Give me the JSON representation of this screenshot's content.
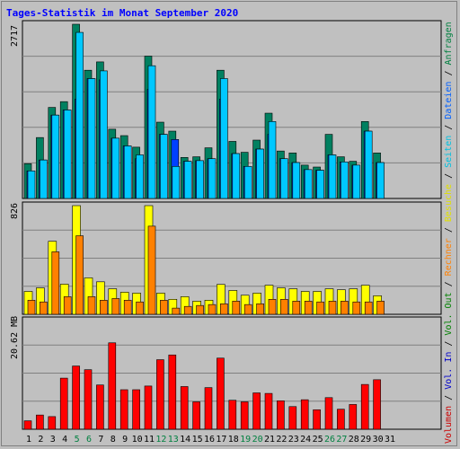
{
  "title": "Tages-Statistik im Monat September 2020",
  "right_label": {
    "parts": [
      {
        "text": "Volumen",
        "color": "#cc0000"
      },
      {
        "text": " / ",
        "color": "#000000"
      },
      {
        "text": "Vol. In",
        "color": "#0000cc"
      },
      {
        "text": " / ",
        "color": "#000000"
      },
      {
        "text": "Vol. Out",
        "color": "#008000"
      },
      {
        "text": " / ",
        "color": "#000000"
      },
      {
        "text": "Rechner",
        "color": "#ff8000"
      },
      {
        "text": " / ",
        "color": "#000000"
      },
      {
        "text": "Besuche",
        "color": "#e0e000"
      },
      {
        "text": " / ",
        "color": "#000000"
      },
      {
        "text": "Seiten",
        "color": "#00c0e0"
      },
      {
        "text": " / ",
        "color": "#000000"
      },
      {
        "text": "Dateien",
        "color": "#0060ff"
      },
      {
        "text": " / ",
        "color": "#000000"
      },
      {
        "text": "Anfragen",
        "color": "#008040"
      }
    ]
  },
  "colors": {
    "anfragen": "#008060",
    "dateien": "#0040ff",
    "seiten": "#00c8ff",
    "besuche": "#ffff00",
    "rechner": "#ff8000",
    "volumen": "#ff0000",
    "weekend_day": "#008040",
    "weekday": "#000000"
  },
  "chart_data": [
    {
      "type": "bar",
      "panel": "top",
      "y_tick_label": "2717",
      "ylim": [
        0,
        2717
      ],
      "x": [
        1,
        2,
        3,
        4,
        5,
        6,
        7,
        8,
        9,
        10,
        11,
        12,
        13,
        14,
        15,
        16,
        17,
        18,
        19,
        20,
        21,
        22,
        23,
        24,
        25,
        26,
        27,
        28,
        29,
        30
      ],
      "series": [
        {
          "name": "Anfragen",
          "values": [
            542,
            950,
            1420,
            1510,
            2717,
            2000,
            2130,
            1080,
            980,
            800,
            2220,
            1190,
            1050,
            640,
            650,
            790,
            2000,
            890,
            720,
            910,
            1330,
            740,
            710,
            520,
            490,
            1000,
            650,
            580,
            1200,
            710
          ]
        },
        {
          "name": "Dateien",
          "values": [
            430,
            600,
            1300,
            1380,
            1550,
            1870,
            1850,
            940,
            820,
            620,
            1700,
            1000,
            920,
            580,
            590,
            620,
            1550,
            700,
            500,
            770,
            1000,
            620,
            560,
            450,
            440,
            680,
            570,
            520,
            1050,
            560
          ]
        },
        {
          "name": "Seiten",
          "values": [
            430,
            600,
            1300,
            1380,
            2590,
            1870,
            1990,
            940,
            820,
            680,
            2070,
            1000,
            500,
            580,
            590,
            620,
            1870,
            700,
            500,
            770,
            1200,
            620,
            560,
            450,
            440,
            680,
            570,
            520,
            1050,
            560
          ]
        }
      ]
    },
    {
      "type": "bar",
      "panel": "middle",
      "y_tick_label": "826",
      "ylim": [
        0,
        826
      ],
      "x": [
        1,
        2,
        3,
        4,
        5,
        6,
        7,
        8,
        9,
        10,
        11,
        12,
        13,
        14,
        15,
        16,
        17,
        18,
        19,
        20,
        21,
        22,
        23,
        24,
        25,
        26,
        27,
        28,
        29,
        30
      ],
      "series": [
        {
          "name": "Besuche",
          "values": [
            174,
            201,
            555,
            229,
            826,
            277,
            247,
            194,
            168,
            161,
            826,
            161,
            114,
            134,
            100,
            107,
            227,
            181,
            145,
            161,
            221,
            201,
            194,
            174,
            174,
            194,
            187,
            194,
            221,
            141
          ]
        },
        {
          "name": "Rechner",
          "values": [
            107,
            94,
            475,
            134,
            597,
            134,
            107,
            120,
            107,
            94,
            670,
            107,
            47,
            60,
            67,
            74,
            80,
            100,
            74,
            80,
            114,
            114,
            100,
            100,
            94,
            100,
            100,
            94,
            94,
            100
          ]
        }
      ]
    },
    {
      "type": "bar",
      "panel": "bottom",
      "y_tick_label": "20.62 MB",
      "ylim": [
        0,
        20.62
      ],
      "x": [
        1,
        2,
        3,
        4,
        5,
        6,
        7,
        8,
        9,
        10,
        11,
        12,
        13,
        14,
        15,
        16,
        17,
        18,
        19,
        20,
        21,
        22,
        23,
        24,
        25,
        26,
        27,
        28,
        29,
        30
      ],
      "series": [
        {
          "name": "Volumen",
          "values": [
            1.6,
            2.7,
            2.4,
            9.7,
            12.0,
            11.3,
            8.4,
            16.4,
            7.5,
            7.5,
            8.2,
            13.2,
            14.1,
            8.1,
            5.2,
            7.9,
            13.5,
            5.5,
            5.2,
            6.9,
            6.8,
            5.4,
            4.3,
            5.6,
            3.7,
            6.0,
            3.8,
            4.7,
            8.5,
            9.4
          ]
        }
      ]
    }
  ],
  "days": [
    {
      "label": "1",
      "weekend": false
    },
    {
      "label": "2",
      "weekend": false
    },
    {
      "label": "3",
      "weekend": false
    },
    {
      "label": "4",
      "weekend": false
    },
    {
      "label": "5",
      "weekend": true
    },
    {
      "label": "6",
      "weekend": true
    },
    {
      "label": "7",
      "weekend": false
    },
    {
      "label": "8",
      "weekend": false
    },
    {
      "label": "9",
      "weekend": false
    },
    {
      "label": "10",
      "weekend": false
    },
    {
      "label": "11",
      "weekend": false
    },
    {
      "label": "12",
      "weekend": true
    },
    {
      "label": "13",
      "weekend": true
    },
    {
      "label": "14",
      "weekend": false
    },
    {
      "label": "15",
      "weekend": false
    },
    {
      "label": "16",
      "weekend": false
    },
    {
      "label": "17",
      "weekend": false
    },
    {
      "label": "18",
      "weekend": false
    },
    {
      "label": "19",
      "weekend": true
    },
    {
      "label": "20",
      "weekend": true
    },
    {
      "label": "21",
      "weekend": false
    },
    {
      "label": "22",
      "weekend": false
    },
    {
      "label": "23",
      "weekend": false
    },
    {
      "label": "24",
      "weekend": false
    },
    {
      "label": "25",
      "weekend": false
    },
    {
      "label": "26",
      "weekend": true
    },
    {
      "label": "27",
      "weekend": true
    },
    {
      "label": "28",
      "weekend": false
    },
    {
      "label": "29",
      "weekend": false
    },
    {
      "label": "30",
      "weekend": false
    },
    {
      "label": "31",
      "weekend": false
    }
  ]
}
